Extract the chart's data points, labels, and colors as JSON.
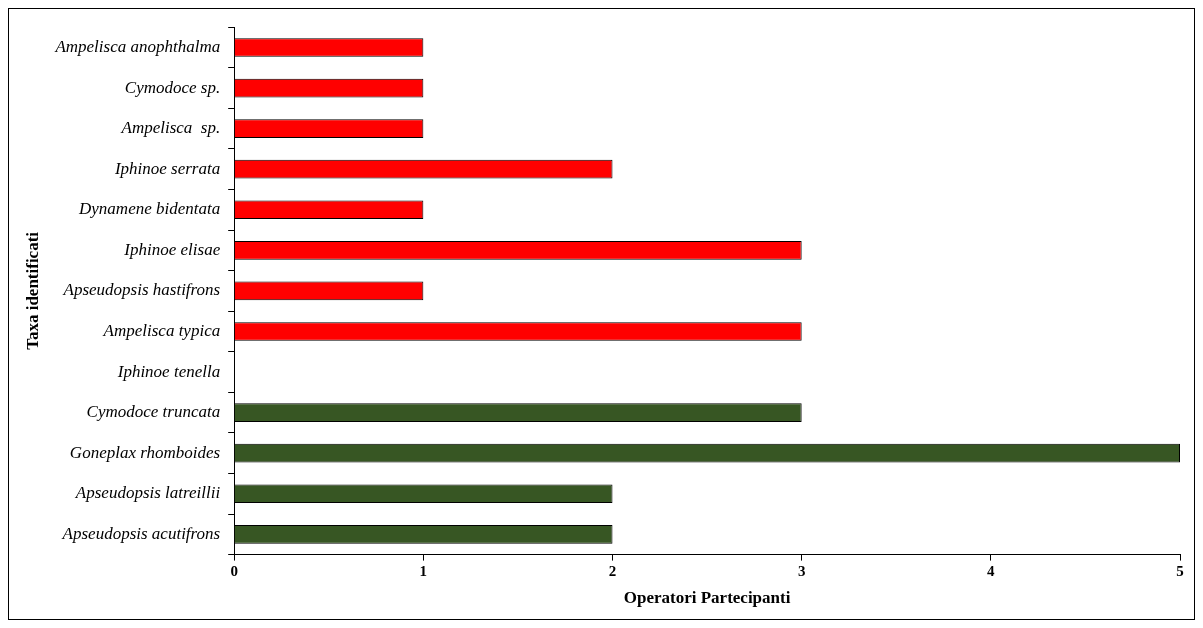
{
  "chart_data": {
    "type": "bar",
    "orientation": "horizontal",
    "xlabel": "Operatori Partecipanti",
    "ylabel": "Taxa identificati",
    "categories": [
      "Ampelisca anophthalma",
      "Cymodoce sp.",
      "Ampelisca  sp.",
      "Iphinoe serrata",
      "Dynamene bidentata",
      "Iphinoe elisae",
      "Apseudopsis hastifrons",
      "Ampelisca typica",
      "Iphinoe tenella",
      "Cymodoce truncata",
      "Goneplax rhomboides",
      "Apseudopsis latreillii",
      "Apseudopsis acutifrons"
    ],
    "values": [
      1,
      1,
      1,
      2,
      1,
      3,
      1,
      3,
      0,
      3,
      5,
      2,
      2
    ],
    "colors": [
      "#ff0000",
      "#ff0000",
      "#ff0000",
      "#ff0000",
      "#ff0000",
      "#ff0000",
      "#ff0000",
      "#ff0000",
      "#375623",
      "#375623",
      "#375623",
      "#375623",
      "#375623"
    ],
    "xlim": [
      0,
      5
    ],
    "xticks": [
      0,
      1,
      2,
      3,
      4,
      5
    ],
    "grid": false,
    "legend": false
  }
}
